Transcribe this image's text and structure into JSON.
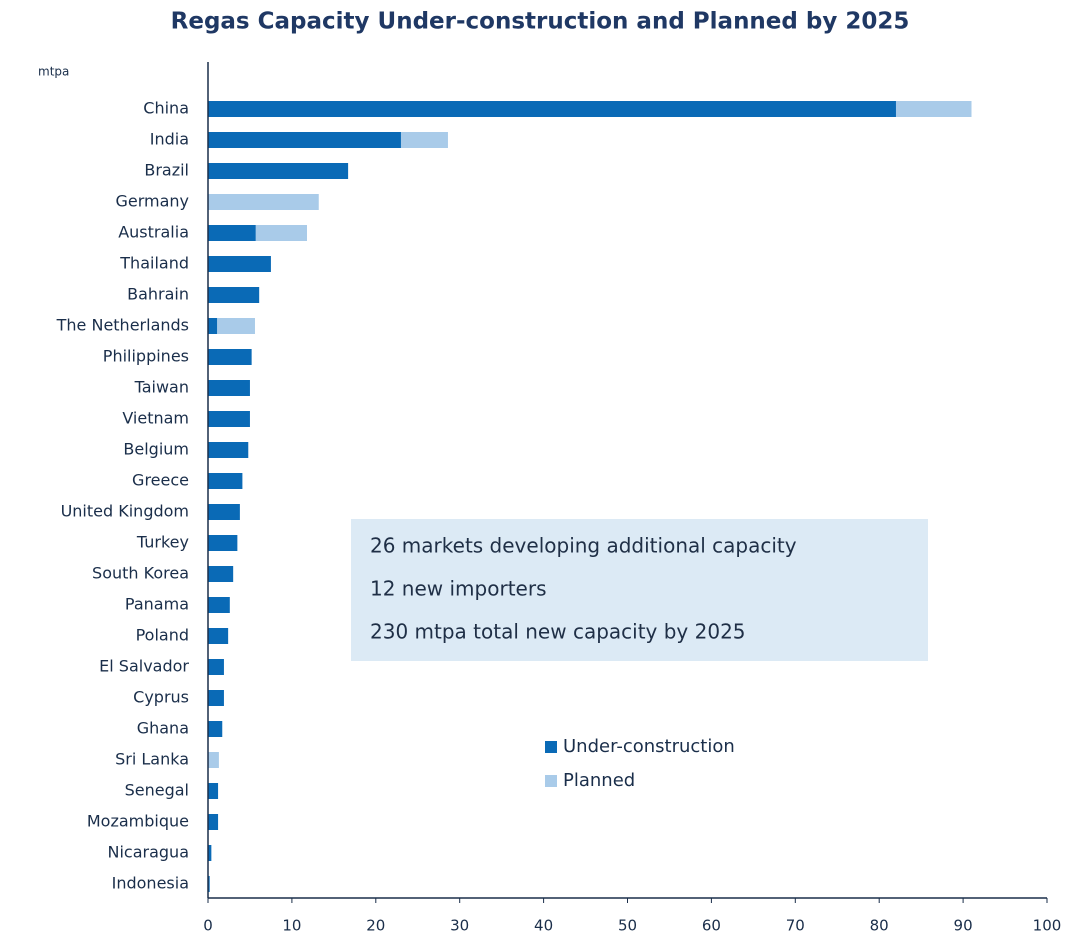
{
  "chart_data": {
    "type": "stacked_barh",
    "title": "Regas Capacity Under-construction and Planned by 2025",
    "value_unit": "mtpa",
    "categories": [
      "China",
      "India",
      "Brazil",
      "Germany",
      "Australia",
      "Thailand",
      "Bahrain",
      "The Netherlands",
      "Philippines",
      "Taiwan",
      "Vietnam",
      "Belgium",
      "Greece",
      "United Kingdom",
      "Turkey",
      "South Korea",
      "Panama",
      "Poland",
      "El Salvador",
      "Cyprus",
      "Ghana",
      "Sri Lanka",
      "Senegal",
      "Mozambique",
      "Nicaragua",
      "Indonesia"
    ],
    "series": [
      {
        "name": "Under-construction",
        "color": "#0a6ab6",
        "values": [
          82,
          23,
          16.7,
          0,
          5.7,
          7.5,
          6.1,
          1.1,
          5.2,
          5.0,
          5.0,
          4.8,
          4.1,
          3.8,
          3.5,
          3.0,
          2.6,
          2.4,
          1.9,
          1.9,
          1.7,
          0,
          1.2,
          1.2,
          0.4,
          0.2
        ]
      },
      {
        "name": "Planned",
        "color": "#a9cbe9",
        "values": [
          9,
          5.6,
          0,
          13.2,
          6.1,
          0,
          0,
          4.5,
          0,
          0,
          0,
          0,
          0,
          0,
          0,
          0,
          0,
          0,
          0,
          0,
          0,
          1.3,
          0,
          0,
          0,
          0
        ]
      }
    ],
    "xlim": [
      0,
      100
    ],
    "xticks": [
      0,
      10,
      20,
      30,
      40,
      50,
      60,
      70,
      80,
      90,
      100
    ],
    "annotations": [
      "26 markets developing additional capacity",
      "12 new importers",
      "230 mtpa total new capacity by 2025"
    ],
    "legend": "center"
  }
}
